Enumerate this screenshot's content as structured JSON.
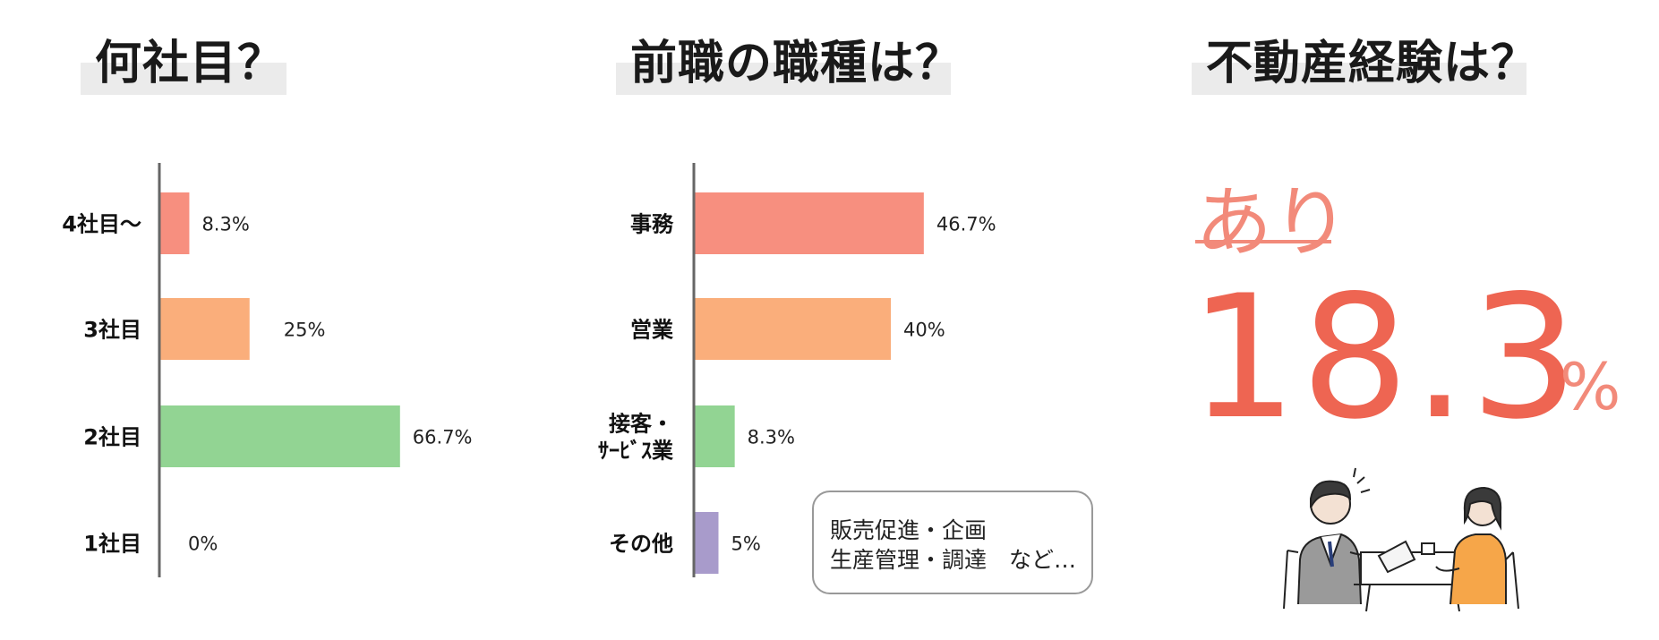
{
  "sections": {
    "company_count": {
      "title": "何社目？"
    },
    "prev_job": {
      "title": "前職の職種は？"
    },
    "experience": {
      "title": "不動産経験は？",
      "label": "あり",
      "value": "18.3",
      "unit": "%"
    }
  },
  "note": {
    "line1": "販売促進・企画",
    "line2": "生産管理・調達　など…"
  },
  "chart_data": [
    {
      "type": "bar",
      "orientation": "horizontal",
      "categories": [
        "4社目～",
        "3社目",
        "2社目",
        "1社目"
      ],
      "values": [
        8.3,
        25,
        66.7,
        0
      ],
      "data_labels": [
        "8.3%",
        "25%",
        "66.7%",
        "0%"
      ],
      "colors": [
        "#f78f7f",
        "#faae7b",
        "#92d493",
        "#c8c8c8"
      ],
      "xlim": [
        0,
        100
      ]
    },
    {
      "type": "bar",
      "orientation": "horizontal",
      "categories": [
        "事務",
        "営業",
        "接客・\nｻｰﾋﾞｽ業",
        "その他"
      ],
      "category_lines": [
        [
          "事務"
        ],
        [
          "営業"
        ],
        [
          "接客・",
          "ｻｰﾋﾞｽ業"
        ],
        [
          "その他"
        ]
      ],
      "values": [
        46.7,
        40,
        8.3,
        5
      ],
      "data_labels": [
        "46.7%",
        "40%",
        "8.3%",
        "5%"
      ],
      "colors": [
        "#f78f7f",
        "#faae7b",
        "#92d493",
        "#a89bcb"
      ],
      "xlim": [
        0,
        100
      ]
    }
  ],
  "colors": {
    "accent": "#ee6552",
    "accent_light": "#f28a7a",
    "title_bg": "#ebebeb"
  }
}
